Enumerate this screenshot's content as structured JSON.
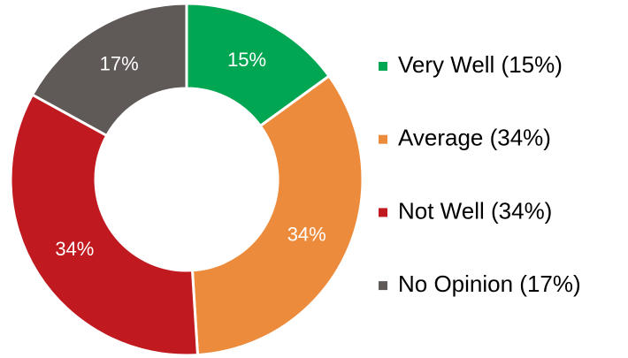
{
  "chart_data": {
    "type": "donut",
    "categories": [
      "Very Well (15%)",
      "Average (34%)",
      "Not Well (34%)",
      "No Opinion (17%)"
    ],
    "values": [
      15,
      34,
      34,
      17
    ],
    "value_labels": [
      "15%",
      "34%",
      "34%",
      "17%"
    ],
    "colors": [
      "#00a651",
      "#ed8b3c",
      "#c0191f",
      "#5f5a58"
    ],
    "legend": "right"
  }
}
